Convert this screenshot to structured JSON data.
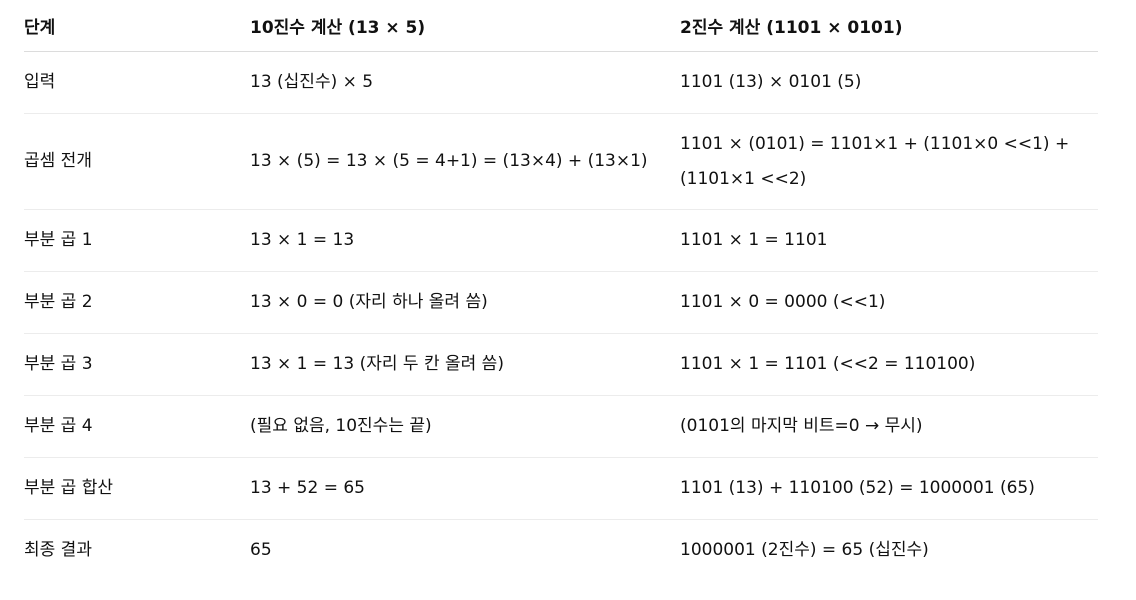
{
  "table": {
    "headers": [
      "단계",
      "10진수 계산 (13 × 5)",
      "2진수 계산 (1101 × 0101)"
    ],
    "rows": [
      [
        "입력",
        "13 (십진수) × 5",
        "1101 (13) × 0101 (5)"
      ],
      [
        "곱셈 전개",
        "13 × (5) = 13 × (5 = 4+1) = (13×4) + (13×1)",
        "1101 × (0101) = 1101×1 + (1101×0 <<1) + (1101×1 <<2)"
      ],
      [
        "부분 곱 1",
        "13 × 1 = 13",
        "1101 × 1 = 1101"
      ],
      [
        "부분 곱 2",
        "13 × 0 = 0 (자리 하나 올려 씀)",
        "1101 × 0 = 0000 (<<1)"
      ],
      [
        "부분 곱 3",
        "13 × 1 = 13 (자리 두 칸 올려 씀)",
        "1101 × 1 = 1101 (<<2 = 110100)"
      ],
      [
        "부분 곱 4",
        "(필요 없음, 10진수는 끝)",
        "(0101의 마지막 비트=0 → 무시)"
      ],
      [
        "부분 곱 합산",
        "13 + 52 = 65",
        "1101 (13) + 110100 (52) = 1000001 (65)"
      ],
      [
        "최종 결과",
        "65",
        "1000001 (2진수) = 65 (십진수)"
      ]
    ]
  }
}
